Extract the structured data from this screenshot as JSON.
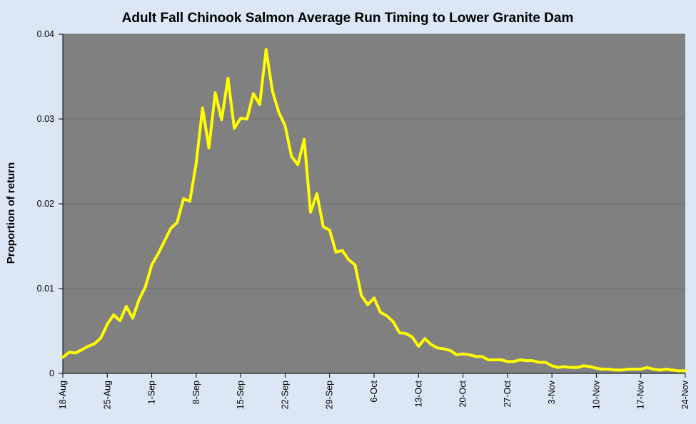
{
  "chart_data": {
    "type": "line",
    "title": "Adult Fall Chinook Salmon Average Run Timing to Lower Granite Dam",
    "xlabel": "",
    "ylabel": "Proportion of return",
    "ylim": [
      0,
      0.04
    ],
    "yticks": [
      {
        "value": 0,
        "label": "0"
      },
      {
        "value": 0.01,
        "label": "0.01"
      },
      {
        "value": 0.02,
        "label": "0.02"
      },
      {
        "value": 0.03,
        "label": "0.03"
      },
      {
        "value": 0.04,
        "label": "0.04"
      }
    ],
    "x_start": "18-Aug",
    "xlim_days": [
      0,
      98
    ],
    "xticks": [
      "18-Aug",
      "25-Aug",
      "1-Sep",
      "8-Sep",
      "15-Sep",
      "22-Sep",
      "29-Sep",
      "6-Oct",
      "13-Oct",
      "20-Oct",
      "27-Oct",
      "3-Nov",
      "10-Nov",
      "17-Nov",
      "24-Nov"
    ],
    "grid": true,
    "plot_background": "#808080",
    "series": [
      {
        "color": "#ffff00",
        "values": [
          0.0019,
          0.0025,
          0.0024,
          0.0028,
          0.0032,
          0.0035,
          0.0042,
          0.0058,
          0.0069,
          0.0062,
          0.0079,
          0.0065,
          0.0087,
          0.0102,
          0.0128,
          0.0141,
          0.0156,
          0.0171,
          0.0178,
          0.0206,
          0.0203,
          0.0248,
          0.0313,
          0.0266,
          0.0331,
          0.0299,
          0.0348,
          0.0289,
          0.0301,
          0.03,
          0.033,
          0.0317,
          0.0382,
          0.0333,
          0.0308,
          0.0292,
          0.0256,
          0.0246,
          0.0276,
          0.019,
          0.0212,
          0.0173,
          0.0169,
          0.0143,
          0.0145,
          0.0134,
          0.0128,
          0.0092,
          0.0081,
          0.0089,
          0.0072,
          0.0068,
          0.0061,
          0.0048,
          0.0047,
          0.0043,
          0.0032,
          0.0041,
          0.0034,
          0.003,
          0.0029,
          0.0027,
          0.0022,
          0.0023,
          0.0022,
          0.002,
          0.002,
          0.0016,
          0.0016,
          0.0016,
          0.0014,
          0.0014,
          0.0016,
          0.0015,
          0.0015,
          0.0013,
          0.0013,
          0.0009,
          0.0007,
          0.0008,
          0.0007,
          0.0007,
          0.0009,
          0.0008,
          0.0006,
          0.0005,
          0.0005,
          0.0004,
          0.0004,
          0.0005,
          0.0005,
          0.0005,
          0.0007,
          0.0005,
          0.0004,
          0.0005,
          0.0004,
          0.0003,
          0.0003
        ]
      }
    ]
  }
}
